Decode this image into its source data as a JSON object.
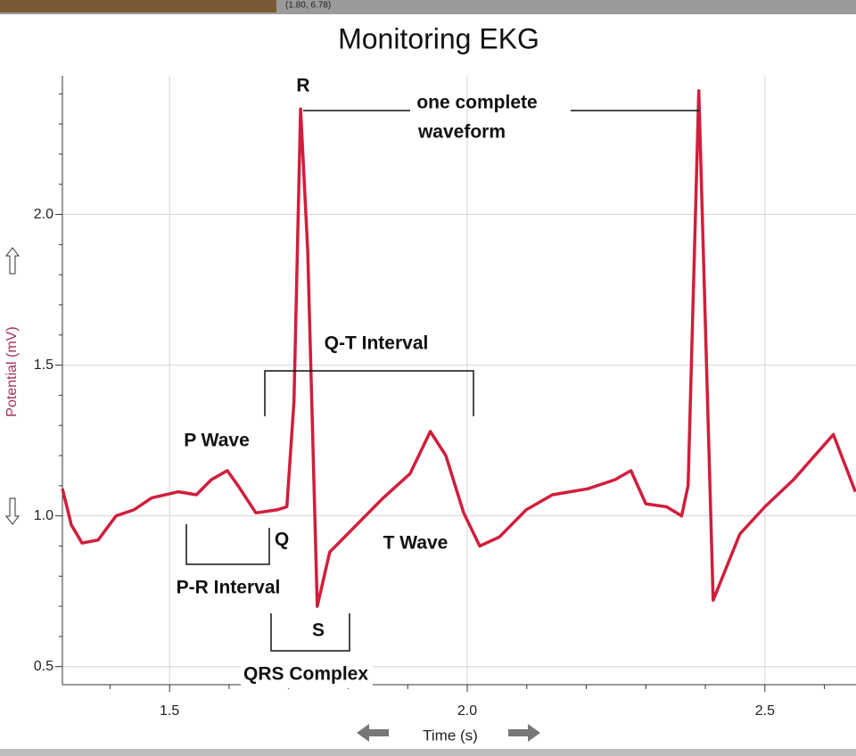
{
  "cursor_readout": "(1.80, 6.78)",
  "chart_data": {
    "type": "line",
    "title": "Monitoring EKG",
    "xlabel": "Time (s)",
    "ylabel": "Potential (mV)",
    "x": [
      1.32,
      1.335,
      1.353,
      1.38,
      1.41,
      1.44,
      1.47,
      1.515,
      1.545,
      1.57,
      1.597,
      1.615,
      1.645,
      1.68,
      1.697,
      1.709,
      1.72,
      1.732,
      1.748,
      1.769,
      1.814,
      1.859,
      1.904,
      1.938,
      1.964,
      1.994,
      2.021,
      2.054,
      2.099,
      2.143,
      2.203,
      2.248,
      2.275,
      2.3,
      2.335,
      2.36,
      2.371,
      2.389,
      2.413,
      2.458,
      2.5,
      2.548,
      2.615,
      2.652
    ],
    "values": [
      1.09,
      0.97,
      0.91,
      0.92,
      1.0,
      1.02,
      1.06,
      1.08,
      1.07,
      1.12,
      1.15,
      1.1,
      1.01,
      1.02,
      1.03,
      1.38,
      2.35,
      1.88,
      0.7,
      0.88,
      0.97,
      1.06,
      1.14,
      1.28,
      1.2,
      1.01,
      0.9,
      0.93,
      1.02,
      1.07,
      1.09,
      1.12,
      1.15,
      1.04,
      1.03,
      1.0,
      1.1,
      2.41,
      0.72,
      0.94,
      1.03,
      1.12,
      1.27,
      1.08
    ],
    "color": "#d01e3c",
    "xlim": [
      1.32,
      2.653
    ],
    "ylim": [
      0.44,
      2.46
    ],
    "xticks": [
      1.5,
      {
        "value": 2,
        "label": "2.0"
      },
      2.5
    ],
    "yticks": [
      0.5,
      {
        "value": 1,
        "label": "1.0"
      },
      1.5,
      {
        "value": 2,
        "label": "2.0"
      }
    ],
    "xminorticks": [
      1.4,
      1.6,
      1.7,
      1.8,
      1.9,
      2.1,
      2.2,
      2.3,
      2.4,
      2.6
    ],
    "yminorticks": [
      0.6,
      0.7,
      0.8,
      0.9,
      1.1,
      1.2,
      1.3,
      1.4,
      1.6,
      1.7,
      1.8,
      1.9,
      2.1,
      2.2,
      2.3,
      2.4
    ],
    "grid": true,
    "annotations": [
      "R",
      "one complete",
      "waveform",
      "Q-T Interval",
      "P Wave",
      "Q",
      "T Wave",
      "P-R Interval",
      "S",
      "QRS Complex"
    ]
  }
}
